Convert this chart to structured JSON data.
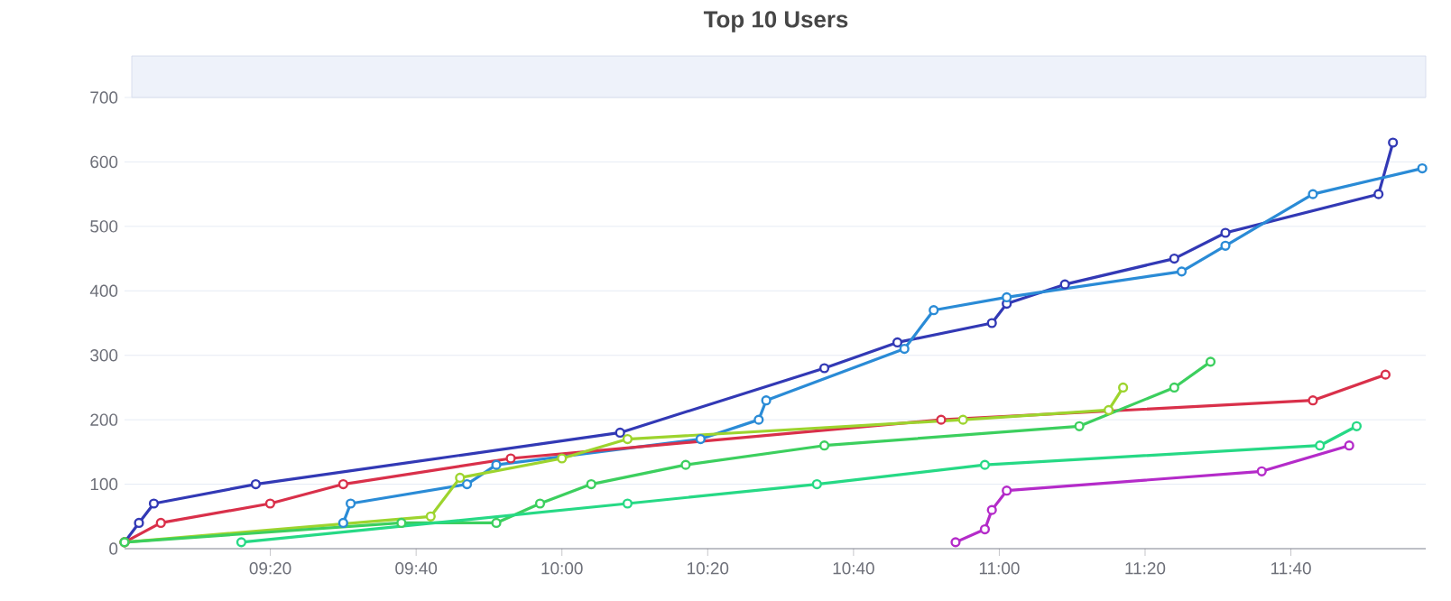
{
  "chart_data": {
    "type": "line",
    "title": "Top 10 Users",
    "xlim": [
      9.0,
      11.975
    ],
    "ylim": [
      0,
      700
    ],
    "xticks": [
      {
        "value": 9.3333,
        "label": "09:20"
      },
      {
        "value": 9.6667,
        "label": "09:40"
      },
      {
        "value": 10.0,
        "label": "10:00"
      },
      {
        "value": 10.3333,
        "label": "10:20"
      },
      {
        "value": 10.6667,
        "label": "10:40"
      },
      {
        "value": 11.0,
        "label": "11:00"
      },
      {
        "value": 11.3333,
        "label": "11:20"
      },
      {
        "value": 11.6667,
        "label": "11:40"
      }
    ],
    "yticks": [
      0,
      100,
      200,
      300,
      400,
      500,
      600,
      700
    ],
    "grid": "y",
    "marker": "circle",
    "line_style": "solid",
    "series": [
      {
        "color": "#3239b5",
        "x": [
          9.0,
          9.033,
          9.067,
          9.3,
          10.133,
          10.6,
          10.767,
          10.983,
          11.017,
          11.15,
          11.4,
          11.517,
          11.867,
          11.9
        ],
        "values": [
          10,
          40,
          70,
          100,
          180,
          280,
          320,
          350,
          380,
          410,
          450,
          490,
          550,
          630
        ]
      },
      {
        "color": "#2a8bd6",
        "x": [
          9.5,
          9.517,
          9.783,
          9.85,
          10.317,
          10.45,
          10.467,
          10.783,
          10.85,
          11.017,
          11.417,
          11.517,
          11.717,
          11.967
        ],
        "values": [
          40,
          70,
          100,
          130,
          170,
          200,
          230,
          310,
          370,
          390,
          430,
          470,
          550,
          590
        ]
      },
      {
        "color": "#d9304a",
        "x": [
          9.0,
          9.083,
          9.333,
          9.5,
          9.883,
          10.867,
          11.717,
          11.883
        ],
        "values": [
          10,
          40,
          70,
          100,
          140,
          200,
          230,
          270
        ]
      },
      {
        "color": "#9dd42e",
        "x": [
          9.0,
          9.7,
          9.767,
          10.0,
          10.15,
          10.917,
          11.25,
          11.283
        ],
        "values": [
          10,
          50,
          110,
          140,
          170,
          200,
          215,
          250
        ]
      },
      {
        "color": "#3ccf5e",
        "x": [
          9.0,
          9.633,
          9.85,
          9.95,
          10.067,
          10.283,
          10.6,
          11.183,
          11.4,
          11.483
        ],
        "values": [
          10,
          40,
          40,
          70,
          100,
          130,
          160,
          190,
          250,
          290
        ]
      },
      {
        "color": "#26d985",
        "x": [
          9.267,
          10.15,
          10.583,
          10.967,
          11.733,
          11.817
        ],
        "values": [
          10,
          70,
          100,
          130,
          160,
          190
        ]
      },
      {
        "color": "#b42bc9",
        "x": [
          10.9,
          10.967,
          10.983,
          11.017,
          11.6,
          11.8
        ],
        "values": [
          10,
          30,
          60,
          90,
          120,
          160
        ]
      }
    ]
  }
}
